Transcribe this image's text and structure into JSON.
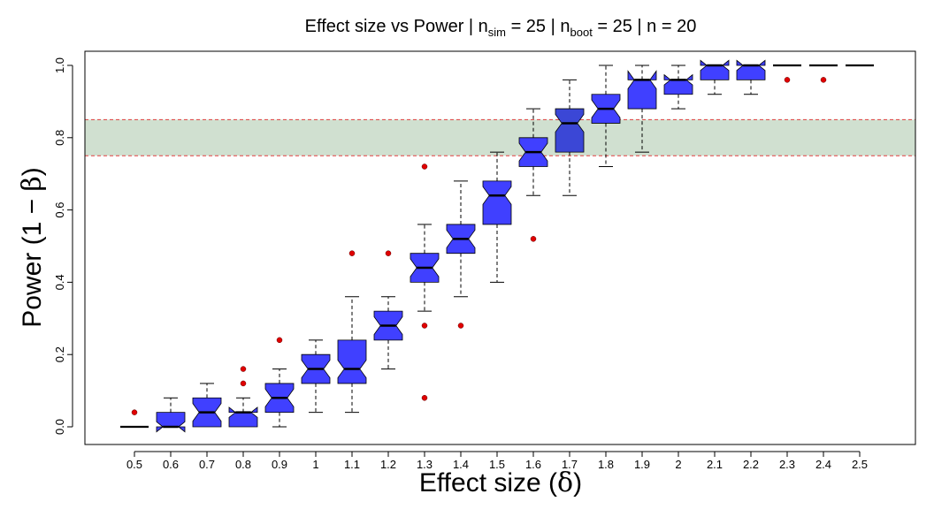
{
  "chart_data": {
    "type": "boxplot",
    "title_parts": {
      "prefix": "Effect size vs Power | n",
      "sim_sub": "sim",
      "mid1": " = 25 | n",
      "boot_sub": "boot",
      "mid2": " = 25 | n = 20"
    },
    "xlabel_text": "Effect size (",
    "xlabel_symbol": "δ",
    "xlabel_close": ")",
    "ylabel_text": "Power (1 − ",
    "ylabel_symbol": "β",
    "ylabel_close": ")",
    "ylim": [
      0,
      1.0
    ],
    "yticks": [
      "0.0",
      "0.2",
      "0.4",
      "0.6",
      "0.8",
      "1.0"
    ],
    "target_band": [
      0.75,
      0.85
    ],
    "colors": {
      "box": "#4040ff",
      "box_highlight": "#3b47d6",
      "band": "#d0e0d0",
      "band_line": "#e04040",
      "outlier": "#e00000",
      "axis": "#000000"
    },
    "categories": [
      "0.5",
      "0.6",
      "0.7",
      "0.8",
      "0.9",
      "1",
      "1.1",
      "1.2",
      "1.3",
      "1.4",
      "1.5",
      "1.6",
      "1.7",
      "1.8",
      "1.9",
      "2",
      "2.1",
      "2.2",
      "2.3",
      "2.4",
      "2.5"
    ],
    "boxes": [
      {
        "min": 0.0,
        "q1": 0.0,
        "med": 0.0,
        "q3": 0.0,
        "max": 0.0,
        "outliers": [
          0.04
        ]
      },
      {
        "min": 0.0,
        "q1": 0.0,
        "med": 0.0,
        "q3": 0.04,
        "max": 0.08,
        "outliers": []
      },
      {
        "min": 0.0,
        "q1": 0.0,
        "med": 0.04,
        "q3": 0.08,
        "max": 0.12,
        "outliers": []
      },
      {
        "min": 0.0,
        "q1": 0.0,
        "med": 0.04,
        "q3": 0.04,
        "max": 0.08,
        "outliers": [
          0.12,
          0.16
        ]
      },
      {
        "min": 0.0,
        "q1": 0.04,
        "med": 0.08,
        "q3": 0.12,
        "max": 0.16,
        "outliers": [
          0.24
        ]
      },
      {
        "min": 0.04,
        "q1": 0.12,
        "med": 0.16,
        "q3": 0.2,
        "max": 0.24,
        "outliers": []
      },
      {
        "min": 0.04,
        "q1": 0.12,
        "med": 0.16,
        "q3": 0.24,
        "max": 0.36,
        "outliers": [
          0.48
        ]
      },
      {
        "min": 0.16,
        "q1": 0.24,
        "med": 0.28,
        "q3": 0.32,
        "max": 0.36,
        "outliers": [
          0.48
        ]
      },
      {
        "min": 0.32,
        "q1": 0.4,
        "med": 0.44,
        "q3": 0.48,
        "max": 0.56,
        "outliers": [
          0.72,
          0.28,
          0.08
        ]
      },
      {
        "min": 0.36,
        "q1": 0.48,
        "med": 0.52,
        "q3": 0.56,
        "max": 0.68,
        "outliers": [
          0.28
        ]
      },
      {
        "min": 0.4,
        "q1": 0.56,
        "med": 0.64,
        "q3": 0.68,
        "max": 0.76,
        "outliers": []
      },
      {
        "min": 0.64,
        "q1": 0.72,
        "med": 0.76,
        "q3": 0.8,
        "max": 0.88,
        "outliers": [
          0.52
        ]
      },
      {
        "min": 0.64,
        "q1": 0.76,
        "med": 0.84,
        "q3": 0.88,
        "max": 0.96,
        "outliers": []
      },
      {
        "min": 0.72,
        "q1": 0.84,
        "med": 0.88,
        "q3": 0.92,
        "max": 1.0,
        "outliers": []
      },
      {
        "min": 0.76,
        "q1": 0.88,
        "med": 0.96,
        "q3": 0.96,
        "max": 1.0,
        "outliers": []
      },
      {
        "min": 0.88,
        "q1": 0.92,
        "med": 0.96,
        "q3": 0.96,
        "max": 1.0,
        "outliers": []
      },
      {
        "min": 0.92,
        "q1": 0.96,
        "med": 1.0,
        "q3": 1.0,
        "max": 1.0,
        "outliers": []
      },
      {
        "min": 0.92,
        "q1": 0.96,
        "med": 1.0,
        "q3": 1.0,
        "max": 1.0,
        "outliers": []
      },
      {
        "min": 1.0,
        "q1": 1.0,
        "med": 1.0,
        "q3": 1.0,
        "max": 1.0,
        "outliers": [
          0.96
        ]
      },
      {
        "min": 1.0,
        "q1": 1.0,
        "med": 1.0,
        "q3": 1.0,
        "max": 1.0,
        "outliers": [
          0.96
        ]
      },
      {
        "min": 1.0,
        "q1": 1.0,
        "med": 1.0,
        "q3": 1.0,
        "max": 1.0,
        "outliers": []
      }
    ],
    "grid": false,
    "legend": "none"
  }
}
